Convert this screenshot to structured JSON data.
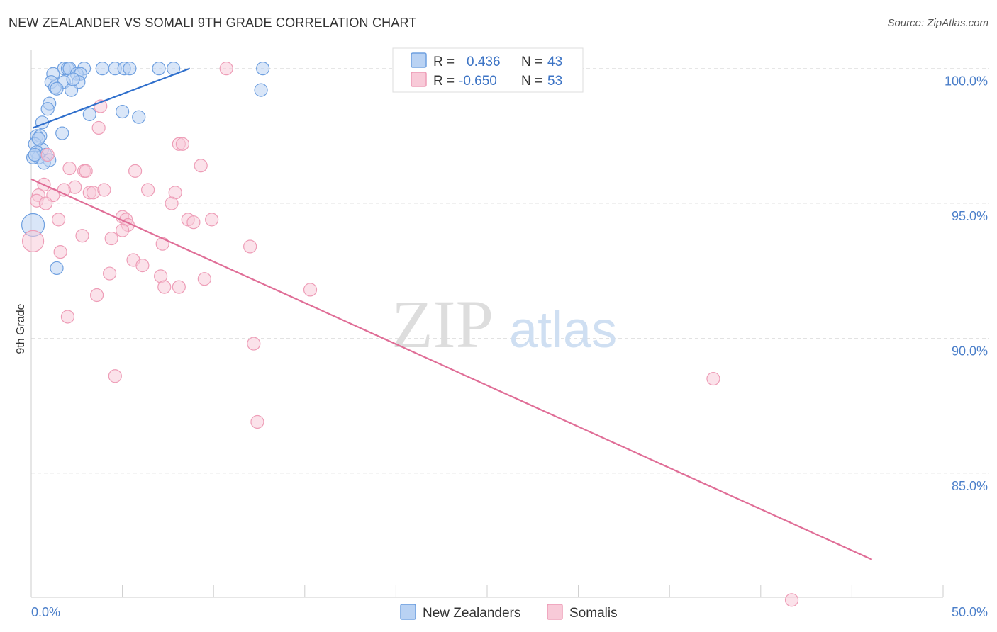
{
  "chart_data": {
    "type": "scatter",
    "title": "NEW ZEALANDER VS SOMALI 9TH GRADE CORRELATION CHART",
    "source": "Source: ZipAtlas.com",
    "xlabel": "",
    "ylabel": "9th Grade",
    "xlim": [
      0,
      50
    ],
    "ylim": [
      80.4,
      100.7
    ],
    "x_tick_labels": [
      {
        "value": 0,
        "label": "0.0%"
      },
      {
        "value": 50,
        "label": "50.0%"
      }
    ],
    "y_tick_labels": [
      {
        "value": 100,
        "label": "100.0%"
      },
      {
        "value": 95,
        "label": "95.0%"
      },
      {
        "value": 90,
        "label": "90.0%"
      },
      {
        "value": 85,
        "label": "85.0%"
      }
    ],
    "legend_stats": [
      {
        "r_label": "R =",
        "r_value": "0.436",
        "n_label": "N =",
        "n_value": "43"
      },
      {
        "r_label": "R =",
        "r_value": "-0.650",
        "n_label": "N =",
        "n_value": "53"
      }
    ],
    "watermark": {
      "part1": "ZIP",
      "part2": "atlas"
    },
    "series": [
      {
        "name": "New Zealanders",
        "color": "#6fa0e0",
        "fill": "#b9d2f3",
        "line_color": "#2f6fcc",
        "trend": {
          "x": [
            0.1,
            8.7
          ],
          "y": [
            97.8,
            100.0
          ]
        },
        "points": [
          [
            1.8,
            100.0
          ],
          [
            2.0,
            100.0
          ],
          [
            2.1,
            100.0
          ],
          [
            2.9,
            100.0
          ],
          [
            3.9,
            100.0
          ],
          [
            4.6,
            100.0
          ],
          [
            5.1,
            100.0
          ],
          [
            5.4,
            100.0
          ],
          [
            7.0,
            100.0
          ],
          [
            7.8,
            100.0
          ],
          [
            12.7,
            100.0
          ],
          [
            1.2,
            99.8
          ],
          [
            2.5,
            99.8
          ],
          [
            2.7,
            99.8
          ],
          [
            1.1,
            99.5
          ],
          [
            1.8,
            99.5
          ],
          [
            2.6,
            99.5
          ],
          [
            1.3,
            99.3
          ],
          [
            1.4,
            99.25
          ],
          [
            2.2,
            99.2
          ],
          [
            12.6,
            99.2
          ],
          [
            1.0,
            98.7
          ],
          [
            0.9,
            98.5
          ],
          [
            5.0,
            98.4
          ],
          [
            3.2,
            98.3
          ],
          [
            5.9,
            98.2
          ],
          [
            0.6,
            98.0
          ],
          [
            1.7,
            97.6
          ],
          [
            0.3,
            97.5
          ],
          [
            0.5,
            97.5
          ],
          [
            0.2,
            97.2
          ],
          [
            0.6,
            97.0
          ],
          [
            0.3,
            96.9
          ],
          [
            0.8,
            96.8
          ],
          [
            0.4,
            96.7
          ],
          [
            0.1,
            96.7
          ],
          [
            1.0,
            96.6
          ],
          [
            0.7,
            96.5
          ],
          [
            0.1,
            94.2
          ],
          [
            1.4,
            92.6
          ],
          [
            0.4,
            97.4
          ],
          [
            0.2,
            96.8
          ],
          [
            2.3,
            99.6
          ]
        ],
        "point_sizes": [
          9,
          9,
          9,
          9,
          9,
          9,
          9,
          9,
          9,
          9,
          9,
          9,
          9,
          9,
          9,
          9,
          9,
          9,
          9,
          9,
          9,
          9,
          9,
          9,
          9,
          9,
          9,
          9,
          9,
          9,
          9,
          9,
          9,
          9,
          9,
          9,
          9,
          9,
          16,
          9,
          9,
          9,
          9
        ]
      },
      {
        "name": "Somalis",
        "color": "#ee9db7",
        "fill": "#f8cad8",
        "line_color": "#e06e97",
        "trend": {
          "x": [
            0.0,
            46.1
          ],
          "y": [
            95.9,
            81.8
          ]
        },
        "points": [
          [
            10.7,
            100.0
          ],
          [
            3.8,
            98.6
          ],
          [
            3.7,
            97.8
          ],
          [
            8.1,
            97.2
          ],
          [
            8.3,
            97.2
          ],
          [
            9.3,
            96.4
          ],
          [
            0.9,
            96.8
          ],
          [
            2.1,
            96.3
          ],
          [
            2.9,
            96.2
          ],
          [
            3.0,
            96.2
          ],
          [
            5.7,
            96.2
          ],
          [
            0.7,
            95.7
          ],
          [
            2.4,
            95.6
          ],
          [
            1.8,
            95.5
          ],
          [
            3.2,
            95.4
          ],
          [
            3.4,
            95.4
          ],
          [
            4.0,
            95.5
          ],
          [
            6.4,
            95.5
          ],
          [
            7.9,
            95.4
          ],
          [
            0.4,
            95.3
          ],
          [
            1.2,
            95.3
          ],
          [
            0.3,
            95.1
          ],
          [
            0.8,
            95.0
          ],
          [
            7.7,
            95.0
          ],
          [
            5.0,
            94.5
          ],
          [
            5.2,
            94.4
          ],
          [
            1.5,
            94.4
          ],
          [
            8.6,
            94.4
          ],
          [
            8.9,
            94.3
          ],
          [
            9.9,
            94.4
          ],
          [
            5.3,
            94.2
          ],
          [
            5.0,
            94.0
          ],
          [
            2.8,
            93.8
          ],
          [
            4.4,
            93.7
          ],
          [
            7.2,
            93.5
          ],
          [
            12.0,
            93.4
          ],
          [
            1.6,
            93.2
          ],
          [
            5.6,
            92.9
          ],
          [
            6.1,
            92.7
          ],
          [
            4.3,
            92.4
          ],
          [
            7.1,
            92.3
          ],
          [
            9.5,
            92.2
          ],
          [
            7.3,
            91.9
          ],
          [
            8.1,
            91.9
          ],
          [
            15.3,
            91.8
          ],
          [
            3.6,
            91.6
          ],
          [
            2.0,
            90.8
          ],
          [
            12.2,
            89.8
          ],
          [
            4.6,
            88.6
          ],
          [
            37.4,
            88.5
          ],
          [
            12.4,
            86.9
          ],
          [
            41.7,
            80.3
          ],
          [
            0.1,
            93.6
          ]
        ],
        "point_sizes": [
          9,
          9,
          9,
          9,
          9,
          9,
          9,
          9,
          9,
          9,
          9,
          9,
          9,
          9,
          9,
          9,
          9,
          9,
          9,
          9,
          9,
          9,
          9,
          9,
          9,
          9,
          9,
          9,
          9,
          9,
          9,
          9,
          9,
          9,
          9,
          9,
          9,
          9,
          9,
          9,
          9,
          9,
          9,
          9,
          9,
          9,
          9,
          9,
          9,
          9,
          9,
          9,
          15
        ]
      }
    ]
  }
}
